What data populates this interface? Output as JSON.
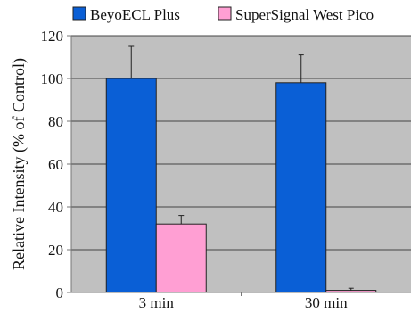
{
  "chart_data": {
    "type": "bar",
    "title": "",
    "xlabel": "",
    "ylabel": "Relative Intensity (% of Control)",
    "categories": [
      "3 min",
      "30 min"
    ],
    "series": [
      {
        "name": "BeyoECL Plus",
        "values": [
          100,
          98
        ],
        "error": [
          15,
          13
        ],
        "color": "#0a5fd6"
      },
      {
        "name": "SuperSignal West Pico",
        "values": [
          32,
          1
        ],
        "error": [
          4,
          1
        ],
        "color": "#ff9fd3"
      }
    ],
    "ylim": [
      0,
      120
    ],
    "yticks": [
      0,
      20,
      40,
      60,
      80,
      100,
      120
    ],
    "grid": true,
    "legend": "top",
    "colors": {
      "plot_background": "#c0c0c0",
      "grid": "#444444",
      "axis": "#777777",
      "text": "#111111"
    }
  }
}
